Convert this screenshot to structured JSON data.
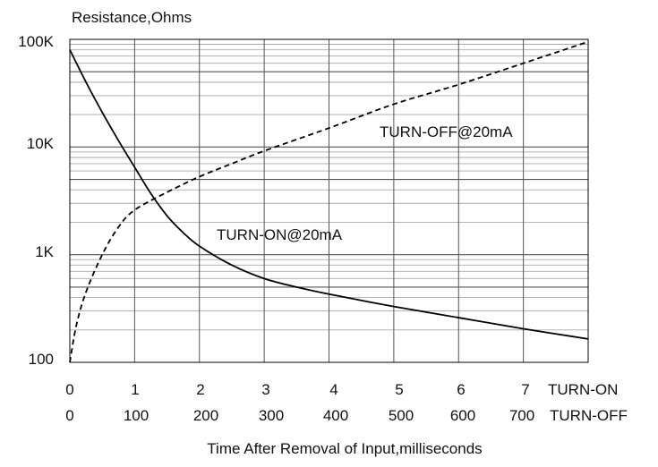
{
  "chart_data": {
    "type": "line",
    "title": "",
    "ylabel": "Resistance,Ohms",
    "xlabel": "Time After Removal of Input,milliseconds",
    "y_scale": "log",
    "ylim": [
      100,
      100000
    ],
    "y_ticks": [
      {
        "value": 100,
        "label": "100"
      },
      {
        "value": 1000,
        "label": "1K"
      },
      {
        "value": 10000,
        "label": "10K"
      },
      {
        "value": 100000,
        "label": "100K"
      }
    ],
    "grid": true,
    "x_axes": [
      {
        "name": "TURN-ON",
        "unit": "milliseconds",
        "xlim": [
          0,
          8
        ],
        "ticks": [
          "0",
          "1",
          "2",
          "3",
          "4",
          "5",
          "6",
          "7"
        ]
      },
      {
        "name": "TURN-OFF",
        "unit": "milliseconds",
        "xlim": [
          0,
          800
        ],
        "ticks": [
          "0",
          "100",
          "200",
          "300",
          "400",
          "500",
          "600",
          "700"
        ]
      }
    ],
    "series": [
      {
        "name": "TURN-ON@20mA",
        "x_axis": "TURN-ON",
        "style": "solid",
        "x": [
          0,
          0.25,
          0.5,
          0.75,
          1.0,
          1.25,
          1.5,
          1.75,
          2.0,
          2.5,
          3.0,
          3.5,
          4.0,
          5.0,
          6.0,
          7.0,
          8.0
        ],
        "y": [
          80000,
          40000,
          21000,
          11500,
          6500,
          3700,
          2300,
          1600,
          1200,
          800,
          600,
          500,
          430,
          330,
          260,
          205,
          165
        ]
      },
      {
        "name": "TURN-OFF@20mA",
        "x_axis": "TURN-OFF",
        "style": "dashed",
        "x": [
          0,
          10,
          25,
          50,
          75,
          100,
          150,
          200,
          250,
          300,
          400,
          500,
          600,
          700,
          800
        ],
        "y": [
          100,
          220,
          450,
          1000,
          1800,
          2600,
          3800,
          5300,
          7000,
          9200,
          15000,
          25000,
          38000,
          60000,
          95000
        ]
      }
    ]
  }
}
